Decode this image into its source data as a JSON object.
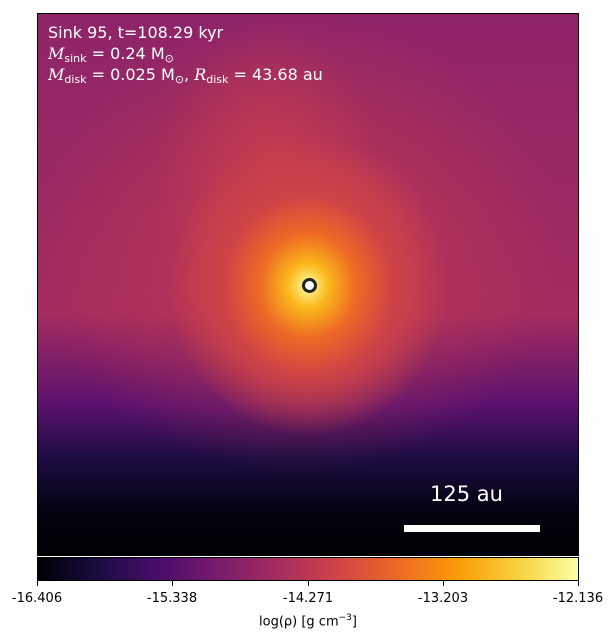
{
  "annotation": {
    "line1": "Sink 95, t=108.29 kyr",
    "m_sink_symbol": "M",
    "m_sink_sub": "sink",
    "m_sink_value": " = 0.24 M",
    "m_sun_sub": "⊙",
    "m_disk_symbol": "M",
    "m_disk_sub": "disk",
    "m_disk_value": " = 0.025 M",
    "m_disk_sun_sub": "⊙",
    "r_disk_symbol": "R",
    "r_disk_sub": "disk",
    "r_disk_value": " = 43.68 au"
  },
  "scalebar": {
    "label": "125 au"
  },
  "colorbar": {
    "ticks": [
      "-16.406",
      "-15.338",
      "-14.271",
      "-13.203",
      "-12.136"
    ],
    "label_prefix": "log(ρ) [g cm",
    "label_exp": "−3",
    "label_suffix": "]",
    "colormap": "inferno"
  }
}
